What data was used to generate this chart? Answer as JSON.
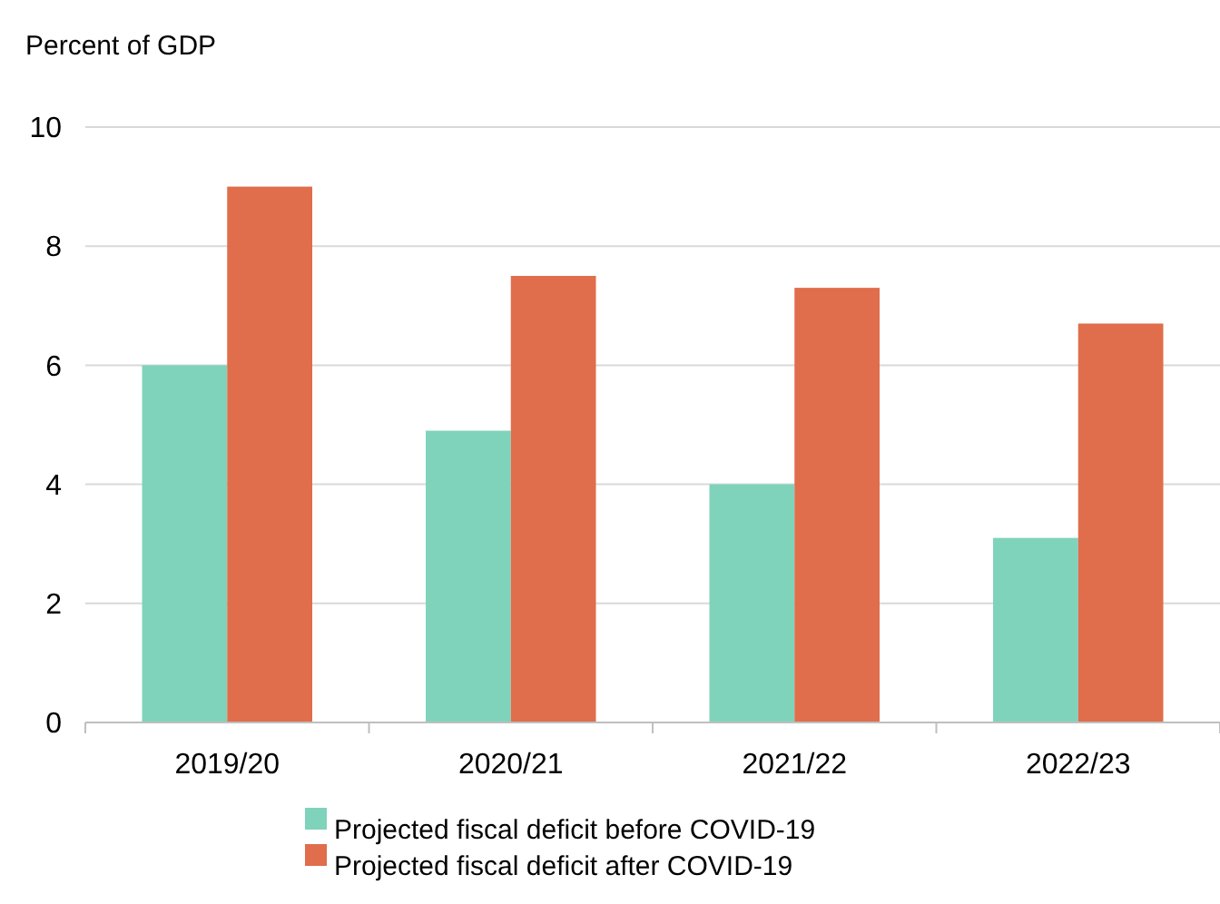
{
  "chart_data": {
    "type": "bar",
    "ylabel": "Percent of GDP",
    "categories": [
      "2019/20",
      "2020/21",
      "2021/22",
      "2022/23"
    ],
    "series": [
      {
        "name": "Projected fiscal deficit before COVID-19",
        "color": "#7fd3bb",
        "values": [
          6.0,
          4.9,
          4.0,
          3.1
        ]
      },
      {
        "name": "Projected fiscal deficit after COVID-19",
        "color": "#e06d4c",
        "values": [
          9.0,
          7.5,
          7.3,
          6.7
        ]
      }
    ],
    "ylim": [
      0,
      10
    ],
    "yticks": [
      0,
      2,
      4,
      6,
      8,
      10
    ],
    "grid": "y",
    "legend": "bottom"
  }
}
